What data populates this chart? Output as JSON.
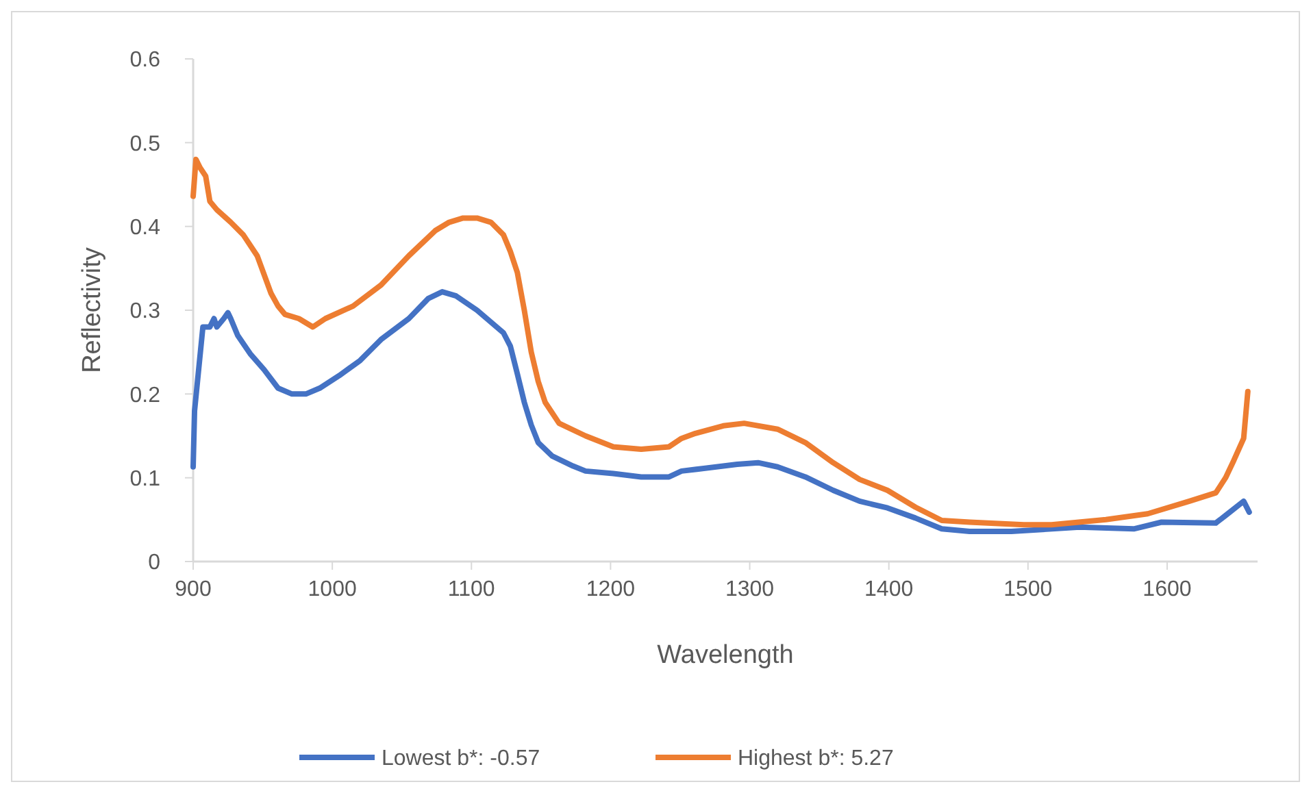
{
  "chart_data": {
    "type": "line",
    "xlabel": "Wavelength",
    "ylabel": "Reflectivity",
    "xlim": [
      900,
      1665
    ],
    "xticks": [
      900,
      1000,
      1100,
      1200,
      1300,
      1400,
      1500,
      1600
    ],
    "ylim": [
      0,
      0.6
    ],
    "yticks": [
      0,
      0.1,
      0.2,
      0.3,
      0.4,
      0.5,
      0.6
    ],
    "grid": false,
    "legend": "bottom",
    "marker": "none",
    "line_style": "solid",
    "series": [
      {
        "name": "Lowest b*: -0.57",
        "color": "#4472c4",
        "x": [
          900,
          901,
          904,
          907,
          912,
          915,
          917,
          922,
          925,
          927,
          932,
          941,
          951,
          961,
          971,
          981,
          991,
          1005,
          1020,
          1035,
          1055,
          1069,
          1079,
          1089,
          1104,
          1123,
          1128,
          1133,
          1138,
          1143,
          1148,
          1158,
          1173,
          1182,
          1202,
          1222,
          1242,
          1251,
          1266,
          1291,
          1306,
          1320,
          1340,
          1360,
          1379,
          1399,
          1419,
          1438,
          1458,
          1488,
          1537,
          1576,
          1596,
          1635,
          1642,
          1655,
          1659
        ],
        "values": [
          0.113,
          0.18,
          0.23,
          0.28,
          0.28,
          0.29,
          0.28,
          0.29,
          0.297,
          0.29,
          0.27,
          0.248,
          0.229,
          0.207,
          0.2,
          0.2,
          0.207,
          0.222,
          0.24,
          0.265,
          0.29,
          0.314,
          0.322,
          0.317,
          0.3,
          0.273,
          0.257,
          0.224,
          0.19,
          0.163,
          0.142,
          0.126,
          0.114,
          0.108,
          0.105,
          0.101,
          0.101,
          0.108,
          0.111,
          0.116,
          0.118,
          0.113,
          0.101,
          0.085,
          0.072,
          0.064,
          0.052,
          0.039,
          0.036,
          0.036,
          0.041,
          0.039,
          0.047,
          0.046,
          0.055,
          0.072,
          0.059
        ]
      },
      {
        "name": "Highest b*: 5.27",
        "color": "#ed7d31",
        "x": [
          900,
          902,
          905,
          909,
          912,
          917,
          927,
          936,
          946,
          956,
          961,
          966,
          976,
          986,
          995,
          1015,
          1035,
          1055,
          1074,
          1084,
          1094,
          1104,
          1114,
          1123,
          1128,
          1133,
          1138,
          1143,
          1148,
          1153,
          1163,
          1182,
          1202,
          1222,
          1242,
          1251,
          1261,
          1281,
          1296,
          1320,
          1340,
          1360,
          1379,
          1399,
          1419,
          1438,
          1458,
          1497,
          1517,
          1556,
          1586,
          1616,
          1635,
          1642,
          1648,
          1655,
          1658
        ],
        "values": [
          0.436,
          0.48,
          0.47,
          0.46,
          0.43,
          0.42,
          0.405,
          0.39,
          0.365,
          0.32,
          0.305,
          0.295,
          0.29,
          0.28,
          0.29,
          0.305,
          0.33,
          0.365,
          0.395,
          0.405,
          0.41,
          0.41,
          0.405,
          0.39,
          0.37,
          0.345,
          0.3,
          0.25,
          0.215,
          0.19,
          0.165,
          0.15,
          0.137,
          0.134,
          0.137,
          0.147,
          0.153,
          0.162,
          0.165,
          0.158,
          0.142,
          0.118,
          0.098,
          0.085,
          0.065,
          0.049,
          0.047,
          0.044,
          0.044,
          0.05,
          0.057,
          0.072,
          0.082,
          0.1,
          0.121,
          0.147,
          0.203
        ]
      }
    ]
  }
}
